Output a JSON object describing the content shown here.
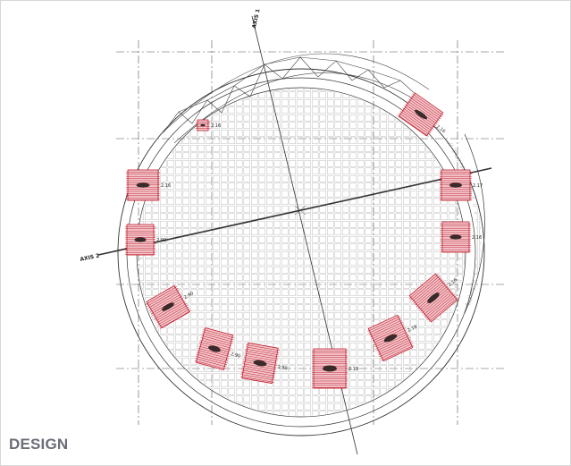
{
  "caption": "DESIGN",
  "axis_labels": {
    "axis1": "AXIS 1",
    "axis2": "AXIS 2"
  },
  "colors": {
    "pad_fill": "#f2c7cc",
    "pad_stroke": "#c21d2c",
    "line": "#333333",
    "grid": "#b8b8b8",
    "caption": "#6b6d78"
  },
  "pads": [
    {
      "id": "pad-1",
      "dim": "2.16"
    },
    {
      "id": "pad-2",
      "dim": "2.90"
    },
    {
      "id": "pad-3",
      "dim": "2.90"
    },
    {
      "id": "pad-4",
      "dim": "2.90"
    },
    {
      "id": "pad-5",
      "dim": "2.90"
    },
    {
      "id": "pad-6",
      "dim": "2.19"
    },
    {
      "id": "pad-7",
      "dim": "2.19"
    },
    {
      "id": "pad-8",
      "dim": "2.16"
    },
    {
      "id": "pad-9",
      "dim": "2.16"
    },
    {
      "id": "pad-10",
      "dim": "2.17"
    },
    {
      "id": "pad-11",
      "dim": "2.16"
    },
    {
      "id": "pad-12",
      "dim": "2.16"
    }
  ]
}
